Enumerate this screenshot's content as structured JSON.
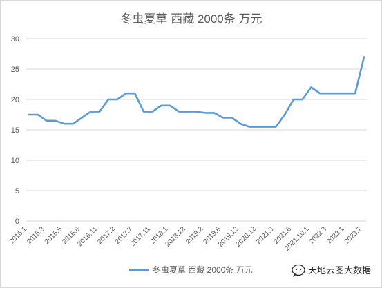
{
  "chart_data": {
    "type": "line",
    "title": "冬虫夏草 西藏 2000条 万元",
    "xlabel": "",
    "ylabel": "",
    "ylim": [
      0,
      30
    ],
    "yticks": [
      0,
      5,
      10,
      15,
      20,
      25,
      30
    ],
    "grid": true,
    "legend_position": "bottom",
    "x_tick_labels": [
      "2016.1",
      "2016.3",
      "2016.5",
      "2016.8",
      "2016.11",
      "2017.2",
      "2017.7",
      "2017.11",
      "2018.1",
      "2018.12",
      "2019.2",
      "2019.6",
      "2019.12",
      "2020.12",
      "2021.3",
      "2021.6",
      "2021.10.1",
      "2022.3",
      "2023.1",
      "2023.7"
    ],
    "series": [
      {
        "name": "冬虫夏草 西藏 2000条 万元",
        "color": "#5b9bd5",
        "values": [
          17.5,
          17.5,
          16.5,
          16.5,
          16,
          16,
          17,
          18,
          18,
          20,
          20,
          21,
          21,
          18,
          18,
          19,
          19,
          18,
          18,
          18,
          17.8,
          17.8,
          17,
          17,
          16,
          15.5,
          15.5,
          15.5,
          15.5,
          17.5,
          20,
          20,
          22,
          21,
          21,
          21,
          21,
          21,
          27
        ]
      }
    ]
  },
  "watermark": {
    "text": "天地云图大数据",
    "icon": "chat-bubble-icon"
  }
}
